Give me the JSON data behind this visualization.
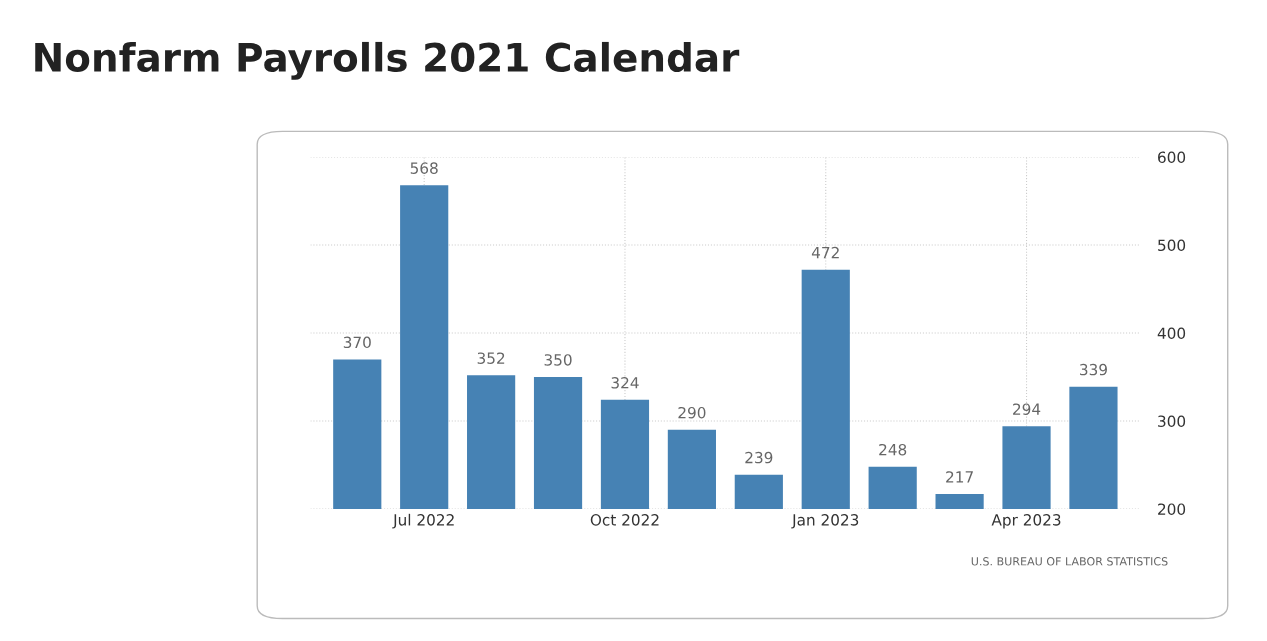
{
  "chart_data": {
    "type": "bar",
    "title": "Nonfarm Payrolls 2021 Calendar",
    "categories": [
      null,
      "Jul 2022",
      null,
      null,
      "Oct 2022",
      null,
      null,
      "Jan 2023",
      null,
      null,
      "Apr 2023",
      null
    ],
    "values": [
      370,
      568,
      352,
      350,
      324,
      290,
      239,
      472,
      248,
      217,
      294,
      339
    ],
    "color": "#4682b4",
    "ylim": [
      200,
      600
    ],
    "yticks": [
      200,
      300,
      400,
      500,
      600
    ],
    "grid": true,
    "data_labels": true,
    "annotations": [
      "U.S. BUREAU OF LABOR STATISTICS"
    ]
  }
}
